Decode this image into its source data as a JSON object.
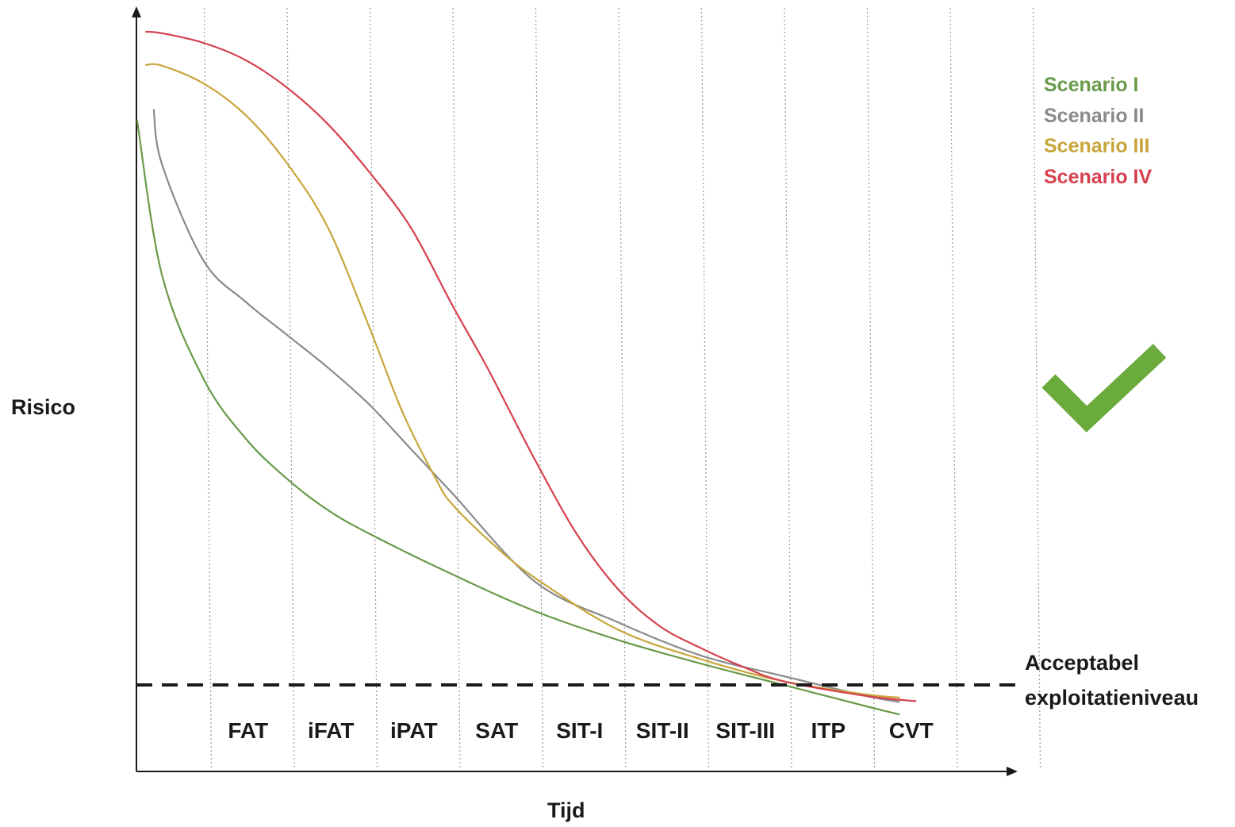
{
  "chart_data": {
    "type": "line",
    "xlabel": "Tijd",
    "ylabel": "Risico",
    "categories": [
      "FAT",
      "iFAT",
      "iPAT",
      "SAT",
      "SIT-I",
      "SIT-II",
      "SIT-III",
      "ITP",
      "CVT"
    ],
    "ylim": [
      0,
      100
    ],
    "grid": "vertical dotted",
    "threshold": {
      "value": 11.5,
      "label_line1": "Acceptabel",
      "label_line2": "exploitatieniveau",
      "style": "dashed"
    },
    "legend": "top-right",
    "series": [
      {
        "name": "Scenario I",
        "color": "#6a9a4a",
        "x": [
          0.2,
          0.5,
          1,
          1.5,
          2,
          2.5,
          3,
          4,
          5,
          6,
          7,
          8,
          9,
          9.4
        ],
        "y": [
          88,
          67,
          53,
          45,
          39.5,
          35.2,
          32,
          26.5,
          21.5,
          17.6,
          14.4,
          11.5,
          8.6,
          7.5
        ]
      },
      {
        "name": "Scenario II",
        "color": "#8a8a8a",
        "x": [
          0.4,
          0.5,
          1,
          1.5,
          2,
          2.5,
          3,
          3.5,
          4,
          5,
          6,
          7,
          8,
          9,
          9.4
        ],
        "y": [
          89.5,
          82,
          69,
          63.5,
          59,
          54.5,
          49.5,
          43.5,
          37.5,
          25.5,
          20,
          15.5,
          12.7,
          10,
          9.2
        ]
      },
      {
        "name": "Scenario III",
        "color": "#c9a53b",
        "x": [
          0.3,
          0.5,
          1,
          1.5,
          2,
          2.5,
          3,
          3.4,
          3.8,
          4,
          4.5,
          5,
          6,
          7,
          8,
          9,
          9.4
        ],
        "y": [
          95.5,
          95.4,
          93,
          88.8,
          82.3,
          73.5,
          60,
          48.5,
          39.5,
          36,
          30.5,
          26,
          19,
          15,
          12,
          10.2,
          9.8
        ]
      },
      {
        "name": "Scenario IV",
        "color": "#d6404f",
        "x": [
          0.3,
          0.5,
          1,
          1.5,
          2,
          2.5,
          3,
          3.5,
          4,
          4.4,
          4.7,
          5,
          5.5,
          6,
          6.5,
          7,
          7.5,
          8,
          9,
          9.6
        ],
        "y": [
          100,
          99.8,
          98.5,
          96.2,
          92.5,
          87.5,
          81,
          73.5,
          63,
          55,
          48.5,
          42,
          32,
          24.5,
          19.5,
          16.5,
          14,
          12,
          10,
          9.3
        ]
      }
    ]
  },
  "checkmark": {
    "icon": "checkmark-icon",
    "color": "#6aab3c"
  }
}
